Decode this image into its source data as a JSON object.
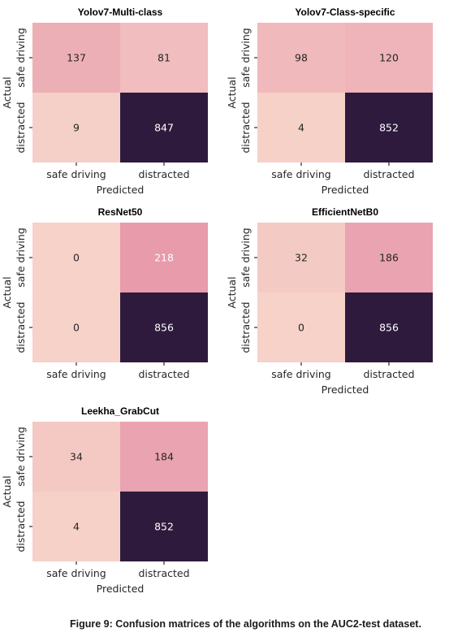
{
  "figure": {
    "caption": "Figure 9: Confusion matrices of the algorithms on the AUC2-test dataset."
  },
  "chart_data": [
    {
      "type": "heatmap",
      "title": "Yolov7-Multi-class",
      "xlabel": "Predicted",
      "ylabel": "Actual",
      "x_categories": [
        "safe driving",
        "distracted"
      ],
      "y_categories": [
        "safe driving",
        "distracted"
      ],
      "values": [
        [
          137,
          81
        ],
        [
          9,
          847
        ]
      ]
    },
    {
      "type": "heatmap",
      "title": "Yolov7-Class-specific",
      "xlabel": "Predicted",
      "ylabel": "Actual",
      "x_categories": [
        "safe driving",
        "distracted"
      ],
      "y_categories": [
        "safe driving",
        "distracted"
      ],
      "values": [
        [
          98,
          120
        ],
        [
          4,
          852
        ]
      ]
    },
    {
      "type": "heatmap",
      "title": "ResNet50",
      "xlabel": "",
      "ylabel": "Actual",
      "x_categories": [
        "safe driving",
        "distracted"
      ],
      "y_categories": [
        "safe driving",
        "distracted"
      ],
      "values": [
        [
          0,
          218
        ],
        [
          0,
          856
        ]
      ]
    },
    {
      "type": "heatmap",
      "title": "EfficientNetB0",
      "xlabel": "Predicted",
      "ylabel": "Actual",
      "x_categories": [
        "safe driving",
        "distracted"
      ],
      "y_categories": [
        "safe driving",
        "distracted"
      ],
      "values": [
        [
          32,
          186
        ],
        [
          0,
          856
        ]
      ]
    },
    {
      "type": "heatmap",
      "title": "Leekha_GrabCut",
      "xlabel": "Predicted",
      "ylabel": "Actual",
      "x_categories": [
        "safe driving",
        "distracted"
      ],
      "y_categories": [
        "safe driving",
        "distracted"
      ],
      "values": [
        [
          34,
          184
        ],
        [
          4,
          852
        ]
      ]
    }
  ],
  "colors": {
    "light": "#f6d2c9",
    "mid": "#e89cac",
    "dark": "#2e1a3c",
    "text_dark": "#262626",
    "text_light": "#ffffff"
  }
}
